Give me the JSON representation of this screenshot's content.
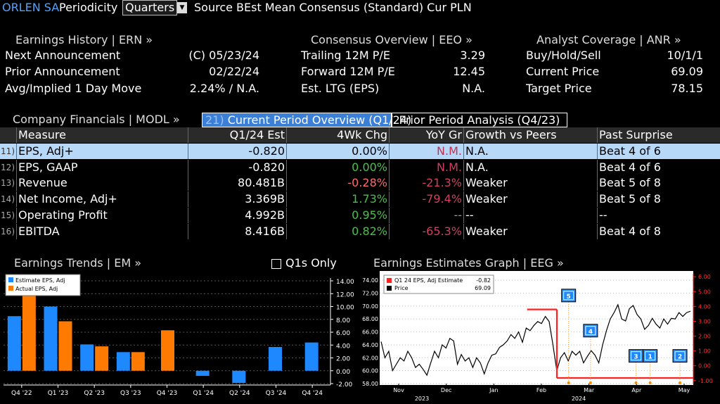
{
  "topbar": {
    "ticker": "ORLEN SA",
    "periodicity_label": "Periodicity",
    "periodicity_value": "Quarters",
    "source_text": "Source BEst Mean Consensus (Standard) Cur PLN"
  },
  "panels": {
    "earnings_history": {
      "title": "Earnings History | ERN »",
      "rows": [
        {
          "label": "Next Announcement",
          "value": "(C)  05/23/24"
        },
        {
          "label": "Prior Announcement",
          "value": "02/22/24"
        },
        {
          "label": "Avg/Implied 1 Day Move",
          "value": "2.24% / N.A."
        }
      ]
    },
    "consensus": {
      "title": "Consensus Overview | EEO »",
      "rows": [
        {
          "label": "Trailing 12M P/E",
          "value": "3.29"
        },
        {
          "label": "Forward 12M P/E",
          "value": "12.45"
        },
        {
          "label": "Est. LTG (EPS)",
          "value": "N.A."
        }
      ]
    },
    "analyst": {
      "title": "Analyst Coverage | ANR »",
      "rows": [
        {
          "label": "Buy/Hold/Sell",
          "value": "10/1/1"
        },
        {
          "label": "Current Price",
          "value": "69.09"
        },
        {
          "label": "Target Price",
          "value": "78.15"
        }
      ]
    }
  },
  "financials": {
    "title": "Company Financials | MODL »",
    "tab_active": "Current Period Overview (Q1/24)",
    "tab_active_num": "21)",
    "tab_inactive": "Prior Period Analysis (Q4/23)",
    "headers": [
      "Measure",
      "Q1/24 Est",
      "4Wk Chg",
      "YoY Gr",
      "Growth vs Peers",
      "Past Surprise"
    ],
    "rows": [
      {
        "num": "11)",
        "measure": "EPS, Adj+",
        "est": "-0.820",
        "chg": "0.00%",
        "yoy": "N.M.",
        "peers": "N.A.",
        "surprise": "Beat 4 of 6"
      },
      {
        "num": "12)",
        "measure": "EPS, GAAP",
        "est": "-0.820",
        "chg": "0.00%",
        "yoy": "N.M.",
        "peers": "N.A.",
        "surprise": "Beat 4 of 6"
      },
      {
        "num": "13)",
        "measure": "Revenue",
        "est": "80.481B",
        "chg": "-0.28%",
        "yoy": "-21.3%",
        "peers": "Weaker",
        "surprise": "Beat 5 of 8"
      },
      {
        "num": "14)",
        "measure": "Net Income, Adj+",
        "est": "3.369B",
        "chg": "1.73%",
        "yoy": "-79.4%",
        "peers": "Weaker",
        "surprise": "Beat 5 of 8"
      },
      {
        "num": "15)",
        "measure": "Operating Profit",
        "est": "4.992B",
        "chg": "0.95%",
        "yoy": "--",
        "peers": "--",
        "surprise": "--"
      },
      {
        "num": "16)",
        "measure": "EBITDA",
        "est": "8.416B",
        "chg": "0.82%",
        "yoy": "-65.3%",
        "peers": "Weaker",
        "surprise": "Beat 4 of 8"
      }
    ]
  },
  "earnings_trends": {
    "title": "Earnings Trends | EM »",
    "checkbox_label": "Q1s Only"
  },
  "earnings_graph": {
    "title": "Earnings Estimates Graph | EEG »"
  },
  "chart_data": [
    {
      "type": "bar",
      "categories": [
        "Q4 '22",
        "Q1 '23",
        "Q2 '23",
        "Q3 '23",
        "Q4 '23",
        "Q1 '24",
        "Q2 '24",
        "Q3 '24",
        "Q4 '24"
      ],
      "series": [
        {
          "name": "Estimate EPS, Adj",
          "color": "#1e88ff",
          "values": [
            8.5,
            10.0,
            4.1,
            2.9,
            null,
            -0.8,
            -1.9,
            3.7,
            4.4
          ]
        },
        {
          "name": "Actual EPS, Adj",
          "color": "#ff7a00",
          "values": [
            11.9,
            7.7,
            3.8,
            2.9,
            6.3,
            null,
            null,
            null,
            null
          ]
        }
      ],
      "ylim": [
        -2.0,
        14.0
      ],
      "yticks": [
        "-2.00",
        "0.00",
        "2.00",
        "4.00",
        "6.00",
        "8.00",
        "10.00",
        "12.00",
        "14.00"
      ],
      "grid": true,
      "legend": "top-left"
    },
    {
      "type": "line",
      "legend_items": [
        {
          "label": "Q1 24 EPS, Adj Estimate",
          "value": "-0.82",
          "color": "#ff2020"
        },
        {
          "label": "Price",
          "value": "69.09",
          "color": "#000000"
        }
      ],
      "x_labels": [
        "Nov",
        "Dec",
        "Jan",
        "Feb",
        "Mar",
        "Apr",
        "May"
      ],
      "x_years": [
        "2023",
        "2024"
      ],
      "left_ticks": [
        "58.00",
        "60.00",
        "62.00",
        "64.00",
        "66.00",
        "68.00",
        "70.00",
        "72.00",
        "74.00"
      ],
      "right_ticks": [
        "-1.00",
        "0.00",
        "1.00",
        "2.00",
        "3.00",
        "4.00",
        "5.00",
        "6.00"
      ],
      "price_ylim": [
        58,
        75
      ],
      "est_ylim": [
        -1.2,
        6.2
      ],
      "price_values": [
        64.5,
        62,
        63,
        60,
        61,
        62,
        61.5,
        63,
        62,
        60.5,
        61,
        60.2,
        59.3,
        61.2,
        63,
        62,
        64,
        63.5,
        65,
        64.6,
        61,
        62.5,
        61.5,
        62,
        60.5,
        62,
        61.2,
        59.5,
        61.2,
        62.4,
        62.6,
        63.6,
        64,
        64.6,
        65.6,
        65,
        66,
        64.4,
        66.6,
        66.2,
        67,
        67.6,
        67.3,
        68.4,
        67.6,
        64,
        60,
        62,
        62.8,
        61.5,
        63,
        62.4,
        63,
        61.2,
        62.2,
        63.1,
        62.4,
        61.2,
        64,
        66.2,
        68,
        69,
        70.2,
        68,
        67.7,
        69.6,
        70.1,
        68.7,
        68,
        66.4,
        67,
        68.1,
        67.2,
        66.6,
        68,
        67.2,
        68.1,
        68,
        69,
        68.4,
        69,
        69.2
      ],
      "estimate_segments": [
        {
          "x0": 0.47,
          "x1": 0.565,
          "y": 3.8
        },
        {
          "x0": 0.565,
          "x1": 1.0,
          "y": -0.82
        }
      ],
      "markers": [
        {
          "label": "5",
          "color": "#1e88ff",
          "x": 0.58,
          "y_pct": 0.14
        },
        {
          "label": "4",
          "color": "#1e88ff",
          "x": 0.65,
          "y_pct": 0.46
        },
        {
          "label": "3",
          "color": "#1e88ff",
          "x": 0.795,
          "y_pct": 0.69
        },
        {
          "label": "1",
          "color": "#1e88ff",
          "x": 0.84,
          "y_pct": 0.69
        },
        {
          "label": "2",
          "color": "#1e88ff",
          "x": 0.935,
          "y_pct": 0.69
        }
      ],
      "vertical_line_color": "#ff8800"
    }
  ]
}
